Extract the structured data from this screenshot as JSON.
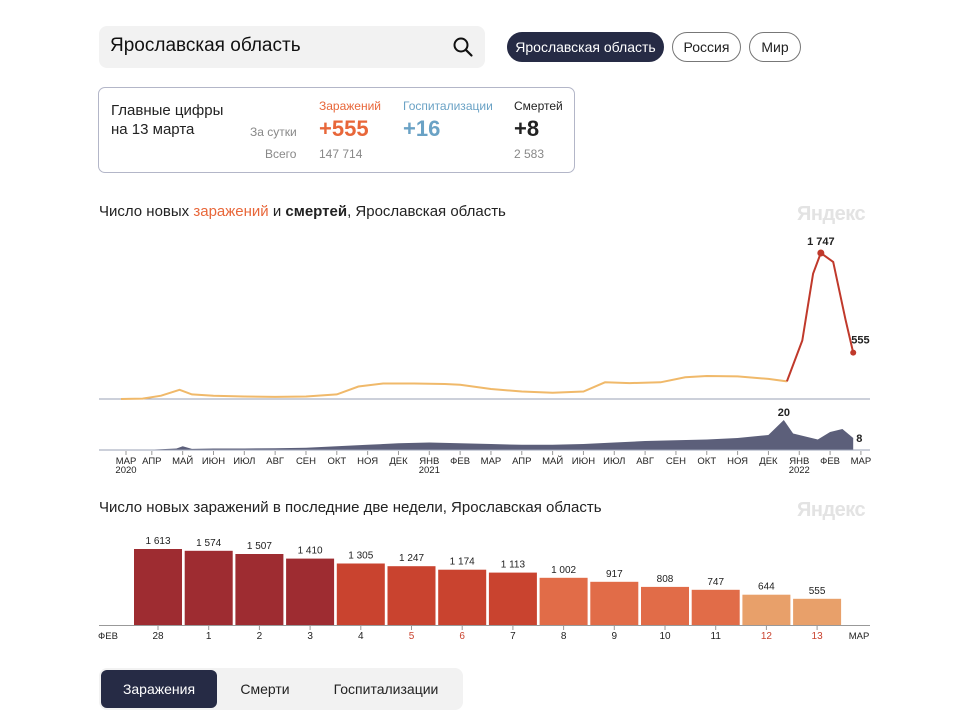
{
  "search": {
    "value": "Ярославская область"
  },
  "regions": [
    {
      "label": "Ярославская область",
      "active": true
    },
    {
      "label": "Россия",
      "active": false
    },
    {
      "label": "Мир",
      "active": false
    }
  ],
  "stats": {
    "title_line1": "Главные цифры",
    "title_line2": "на 13 марта",
    "per_day_label": "За сутки",
    "total_label": "Всего",
    "infections": {
      "label": "Заражений",
      "day": "+555",
      "total": "147 714",
      "color": "#e8673a"
    },
    "hospitalizations": {
      "label": "Госпитализации",
      "day": "+16",
      "total": "",
      "color": "#6aa2c5"
    },
    "deaths": {
      "label": "Смертей",
      "day": "+8",
      "total": "2 583",
      "color": "#222222"
    }
  },
  "chart1": {
    "title_pre": "Число новых ",
    "title_infections": "заражений",
    "title_mid": " и ",
    "title_deaths": "смертей",
    "title_post": ", Ярославская область",
    "watermark": "Яндекс"
  },
  "chart2": {
    "title": "Число новых заражений в последние две недели, Ярославская область",
    "watermark": "Яндекс"
  },
  "tabs": [
    {
      "label": "Заражения",
      "active": true
    },
    {
      "label": "Смерти",
      "active": false
    },
    {
      "label": "Госпитализации",
      "active": false
    }
  ],
  "chart_data": [
    {
      "type": "line",
      "title": "Число новых заражений и смертей, Ярославская область",
      "x_labels": [
        {
          "label": "МАР",
          "sub": "2020"
        },
        {
          "label": "АПР"
        },
        {
          "label": "МАЙ"
        },
        {
          "label": "ИЮН"
        },
        {
          "label": "ИЮЛ"
        },
        {
          "label": "АВГ"
        },
        {
          "label": "СЕН"
        },
        {
          "label": "ОКТ"
        },
        {
          "label": "НОЯ"
        },
        {
          "label": "ДЕК"
        },
        {
          "label": "ЯНВ",
          "sub": "2021"
        },
        {
          "label": "ФЕВ"
        },
        {
          "label": "МАР"
        },
        {
          "label": "АПР"
        },
        {
          "label": "МАЙ"
        },
        {
          "label": "ИЮН"
        },
        {
          "label": "ИЮЛ"
        },
        {
          "label": "АВГ"
        },
        {
          "label": "СЕН"
        },
        {
          "label": "ОКТ"
        },
        {
          "label": "НОЯ"
        },
        {
          "label": "ДЕК"
        },
        {
          "label": "ЯНВ",
          "sub": "2022"
        },
        {
          "label": "ФЕВ"
        },
        {
          "label": "МАР"
        }
      ],
      "series": [
        {
          "name": "Заражения",
          "color": "#f0b96a",
          "peak_color": "#c0392b",
          "ylim": [
            0,
            1800
          ],
          "points": [
            [
              0,
              0
            ],
            [
              0.7,
              5
            ],
            [
              1.3,
              40
            ],
            [
              1.9,
              110
            ],
            [
              2.3,
              55
            ],
            [
              3,
              40
            ],
            [
              4,
              30
            ],
            [
              5,
              25
            ],
            [
              6,
              30
            ],
            [
              7,
              55
            ],
            [
              7.7,
              150
            ],
            [
              8.5,
              185
            ],
            [
              9.5,
              185
            ],
            [
              10.5,
              180
            ],
            [
              11,
              170
            ],
            [
              12,
              120
            ],
            [
              13,
              90
            ],
            [
              14,
              75
            ],
            [
              15,
              90
            ],
            [
              15.7,
              200
            ],
            [
              16.5,
              190
            ],
            [
              17.5,
              200
            ],
            [
              18.3,
              260
            ],
            [
              19,
              275
            ],
            [
              20,
              270
            ],
            [
              21,
              240
            ],
            [
              21.6,
              210
            ],
            [
              22.1,
              700
            ],
            [
              22.45,
              1500
            ],
            [
              22.7,
              1747
            ],
            [
              23.1,
              1640
            ],
            [
              23.5,
              950
            ],
            [
              23.75,
              555
            ]
          ],
          "peak_label": "1 747",
          "last_label": "555"
        },
        {
          "name": "Смерти",
          "color": "#4a4e6b",
          "ylim": [
            0,
            20
          ],
          "points": [
            [
              0,
              0
            ],
            [
              1,
              0.3
            ],
            [
              1.8,
              1
            ],
            [
              2,
              2.5
            ],
            [
              2.3,
              0.7
            ],
            [
              3,
              1
            ],
            [
              4,
              1
            ],
            [
              5,
              1.2
            ],
            [
              6,
              1.5
            ],
            [
              7,
              2.5
            ],
            [
              8,
              3.5
            ],
            [
              9,
              4.5
            ],
            [
              10,
              5
            ],
            [
              11,
              4.5
            ],
            [
              12,
              4
            ],
            [
              13,
              3.5
            ],
            [
              14,
              3.5
            ],
            [
              15,
              4
            ],
            [
              16,
              5
            ],
            [
              17,
              6
            ],
            [
              18,
              6.5
            ],
            [
              19,
              7
            ],
            [
              20,
              8
            ],
            [
              21,
              10
            ],
            [
              21.5,
              20
            ],
            [
              21.8,
              11
            ],
            [
              22.2,
              9
            ],
            [
              22.6,
              7
            ],
            [
              23,
              12
            ],
            [
              23.4,
              14
            ],
            [
              23.75,
              8
            ]
          ],
          "peak_label": "20",
          "last_label": "8"
        }
      ]
    },
    {
      "type": "bar",
      "title": "Число новых заражений в последние две недели, Ярославская область",
      "categories": [
        "28",
        "1",
        "2",
        "3",
        "4",
        "5",
        "6",
        "7",
        "8",
        "9",
        "10",
        "11",
        "12",
        "13"
      ],
      "values": [
        1613,
        1574,
        1507,
        1410,
        1305,
        1247,
        1174,
        1113,
        1002,
        917,
        808,
        747,
        644,
        555
      ],
      "value_labels": [
        "1 613",
        "1 574",
        "1 507",
        "1 410",
        "1 305",
        "1 247",
        "1 174",
        "1 113",
        "1 002",
        "917",
        "808",
        "747",
        "644",
        "555"
      ],
      "colors": [
        "#9e2c31",
        "#9e2c31",
        "#9e2c31",
        "#9e2c31",
        "#c9432f",
        "#c9432f",
        "#c9432f",
        "#c9432f",
        "#e16c48",
        "#e16c48",
        "#e16c48",
        "#e16c48",
        "#e8a06a",
        "#e8a06a"
      ],
      "tick_colors": [
        "#222222",
        "#222222",
        "#222222",
        "#222222",
        "#222222",
        "#c9432f",
        "#c9432f",
        "#222222",
        "#222222",
        "#222222",
        "#222222",
        "#222222",
        "#c9432f",
        "#c9432f"
      ],
      "start_label": "ФЕВ",
      "end_label": "МАР",
      "ylim": [
        0,
        1800
      ]
    }
  ]
}
